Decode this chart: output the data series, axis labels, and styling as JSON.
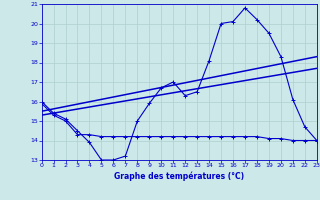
{
  "background_color": "#cde8e8",
  "grid_color": "#aecfcf",
  "line_color": "#0000cc",
  "xlabel": "Graphe des températures (°C)",
  "xlabel_color": "#0000cc",
  "ylim": [
    13,
    21
  ],
  "xlim": [
    0,
    23
  ],
  "yticks": [
    13,
    14,
    15,
    16,
    17,
    18,
    19,
    20,
    21
  ],
  "xticks": [
    0,
    1,
    2,
    3,
    4,
    5,
    6,
    7,
    8,
    9,
    10,
    11,
    12,
    13,
    14,
    15,
    16,
    17,
    18,
    19,
    20,
    21,
    22,
    23
  ],
  "curve1_x": [
    0,
    1,
    2,
    3,
    4,
    5,
    6,
    7,
    8,
    9,
    10,
    11,
    12,
    13,
    14,
    15,
    16,
    17,
    18,
    19,
    20,
    21,
    22,
    23
  ],
  "curve1_y": [
    16.0,
    15.4,
    15.1,
    14.5,
    13.9,
    13.0,
    13.0,
    13.2,
    15.0,
    15.9,
    16.7,
    17.0,
    16.3,
    16.5,
    18.1,
    20.0,
    20.1,
    20.8,
    20.2,
    19.5,
    18.3,
    16.1,
    14.7,
    14.0
  ],
  "curve2_x": [
    0,
    1,
    2,
    3,
    4,
    5,
    6,
    7,
    8,
    9,
    10,
    11,
    12,
    13,
    14,
    15,
    16,
    17,
    18,
    19,
    20,
    21,
    22,
    23
  ],
  "curve2_y": [
    15.9,
    15.3,
    15.0,
    14.3,
    14.3,
    14.2,
    14.2,
    14.2,
    14.2,
    14.2,
    14.2,
    14.2,
    14.2,
    14.2,
    14.2,
    14.2,
    14.2,
    14.2,
    14.2,
    14.1,
    14.1,
    14.0,
    14.0,
    14.0
  ],
  "curve3_x": [
    0,
    23
  ],
  "curve3_y": [
    15.5,
    18.3
  ],
  "curve4_x": [
    0,
    23
  ],
  "curve4_y": [
    15.3,
    17.7
  ]
}
